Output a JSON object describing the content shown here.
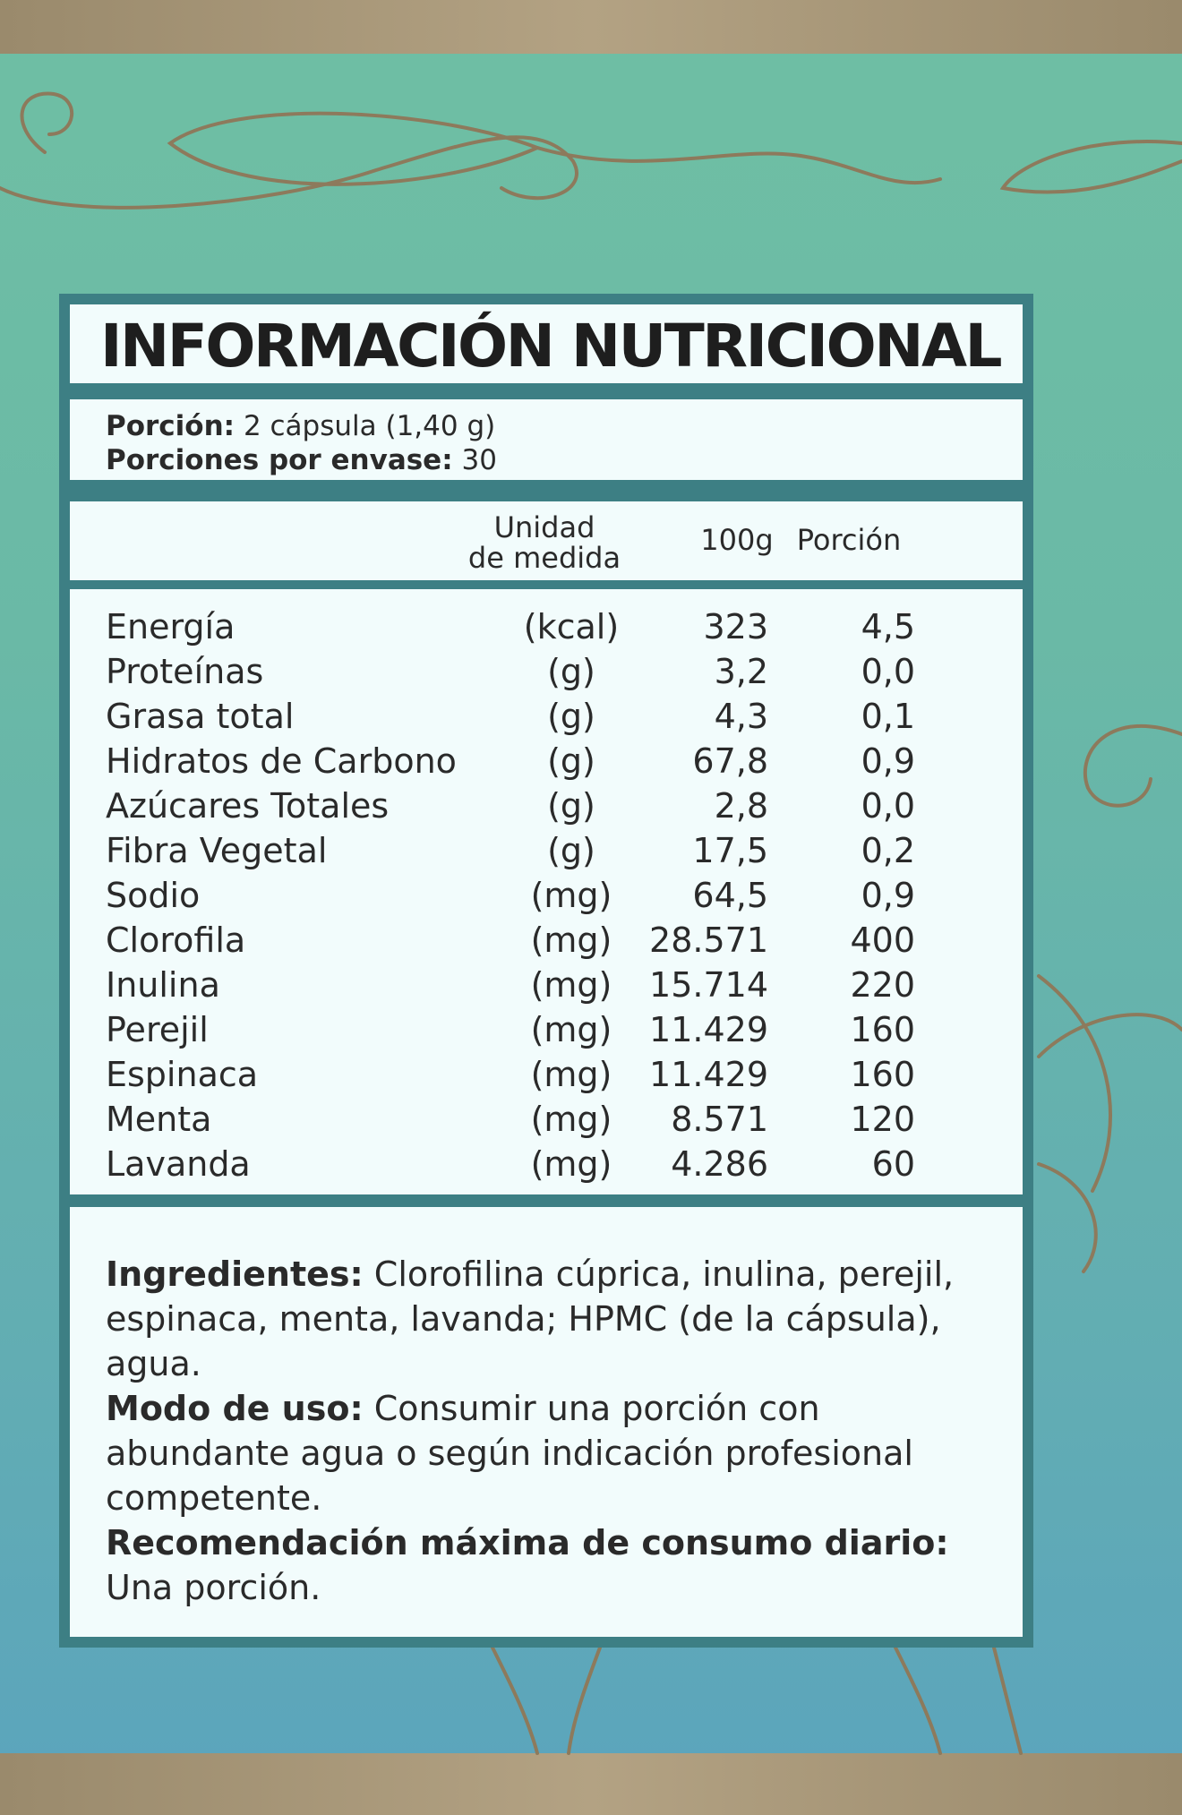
{
  "title": "INFORMACIÓN NUTRICIONAL",
  "portion": {
    "size_label": "Porción:",
    "size_value": "2 cápsula (1,40 g)",
    "servings_label": "Porciones por envase:",
    "servings_value": "30"
  },
  "columns": {
    "unit_line1": "Unidad",
    "unit_line2": "de medida",
    "per_100g": "100g",
    "per_portion": "Porción"
  },
  "rows": [
    {
      "name": "Energía",
      "unit": "(kcal)",
      "per_100g": "323",
      "per_portion": "4,5"
    },
    {
      "name": "Proteínas",
      "unit": "(g)",
      "per_100g": "3,2",
      "per_portion": "0,0"
    },
    {
      "name": "Grasa total",
      "unit": "(g)",
      "per_100g": "4,3",
      "per_portion": "0,1"
    },
    {
      "name": "Hidratos de Carbono",
      "unit": "(g)",
      "per_100g": "67,8",
      "per_portion": "0,9"
    },
    {
      "name": "Azúcares Totales",
      "unit": "(g)",
      "per_100g": "2,8",
      "per_portion": "0,0"
    },
    {
      "name": "Fibra Vegetal",
      "unit": "(g)",
      "per_100g": "17,5",
      "per_portion": "0,2"
    },
    {
      "name": "Sodio",
      "unit": "(mg)",
      "per_100g": "64,5",
      "per_portion": "0,9"
    },
    {
      "name": "Clorofila",
      "unit": "(mg)",
      "per_100g": "28.571",
      "per_portion": "400"
    },
    {
      "name": "Inulina",
      "unit": "(mg)",
      "per_100g": "15.714",
      "per_portion": "220"
    },
    {
      "name": "Perejil",
      "unit": "(mg)",
      "per_100g": "11.429",
      "per_portion": "160"
    },
    {
      "name": "Espinaca",
      "unit": "(mg)",
      "per_100g": "11.429",
      "per_portion": "160"
    },
    {
      "name": "Menta",
      "unit": "(mg)",
      "per_100g": "8.571",
      "per_portion": "120"
    },
    {
      "name": "Lavanda",
      "unit": "(mg)",
      "per_100g": "4.286",
      "per_portion": "60"
    }
  ],
  "ingredients": {
    "label": "Ingredientes:",
    "text": " Clorofilina cúprica, inulina, perejil, espinaca, menta, lavanda; HPMC (de la cápsula), agua."
  },
  "usage": {
    "label": "Modo de uso:",
    "text": " Consumir una porción con abundante agua o según indicación profesional competente."
  },
  "max_daily": {
    "label": "Recomendación máxima de consumo diario:",
    "text": "Una porción."
  },
  "colors": {
    "panel_border": "#3d7f84",
    "panel_fill": "#f2fcfc",
    "background_top": "#6fbfa4",
    "background_bottom": "#5ba4bd",
    "ornament": "#8d7a5c"
  }
}
